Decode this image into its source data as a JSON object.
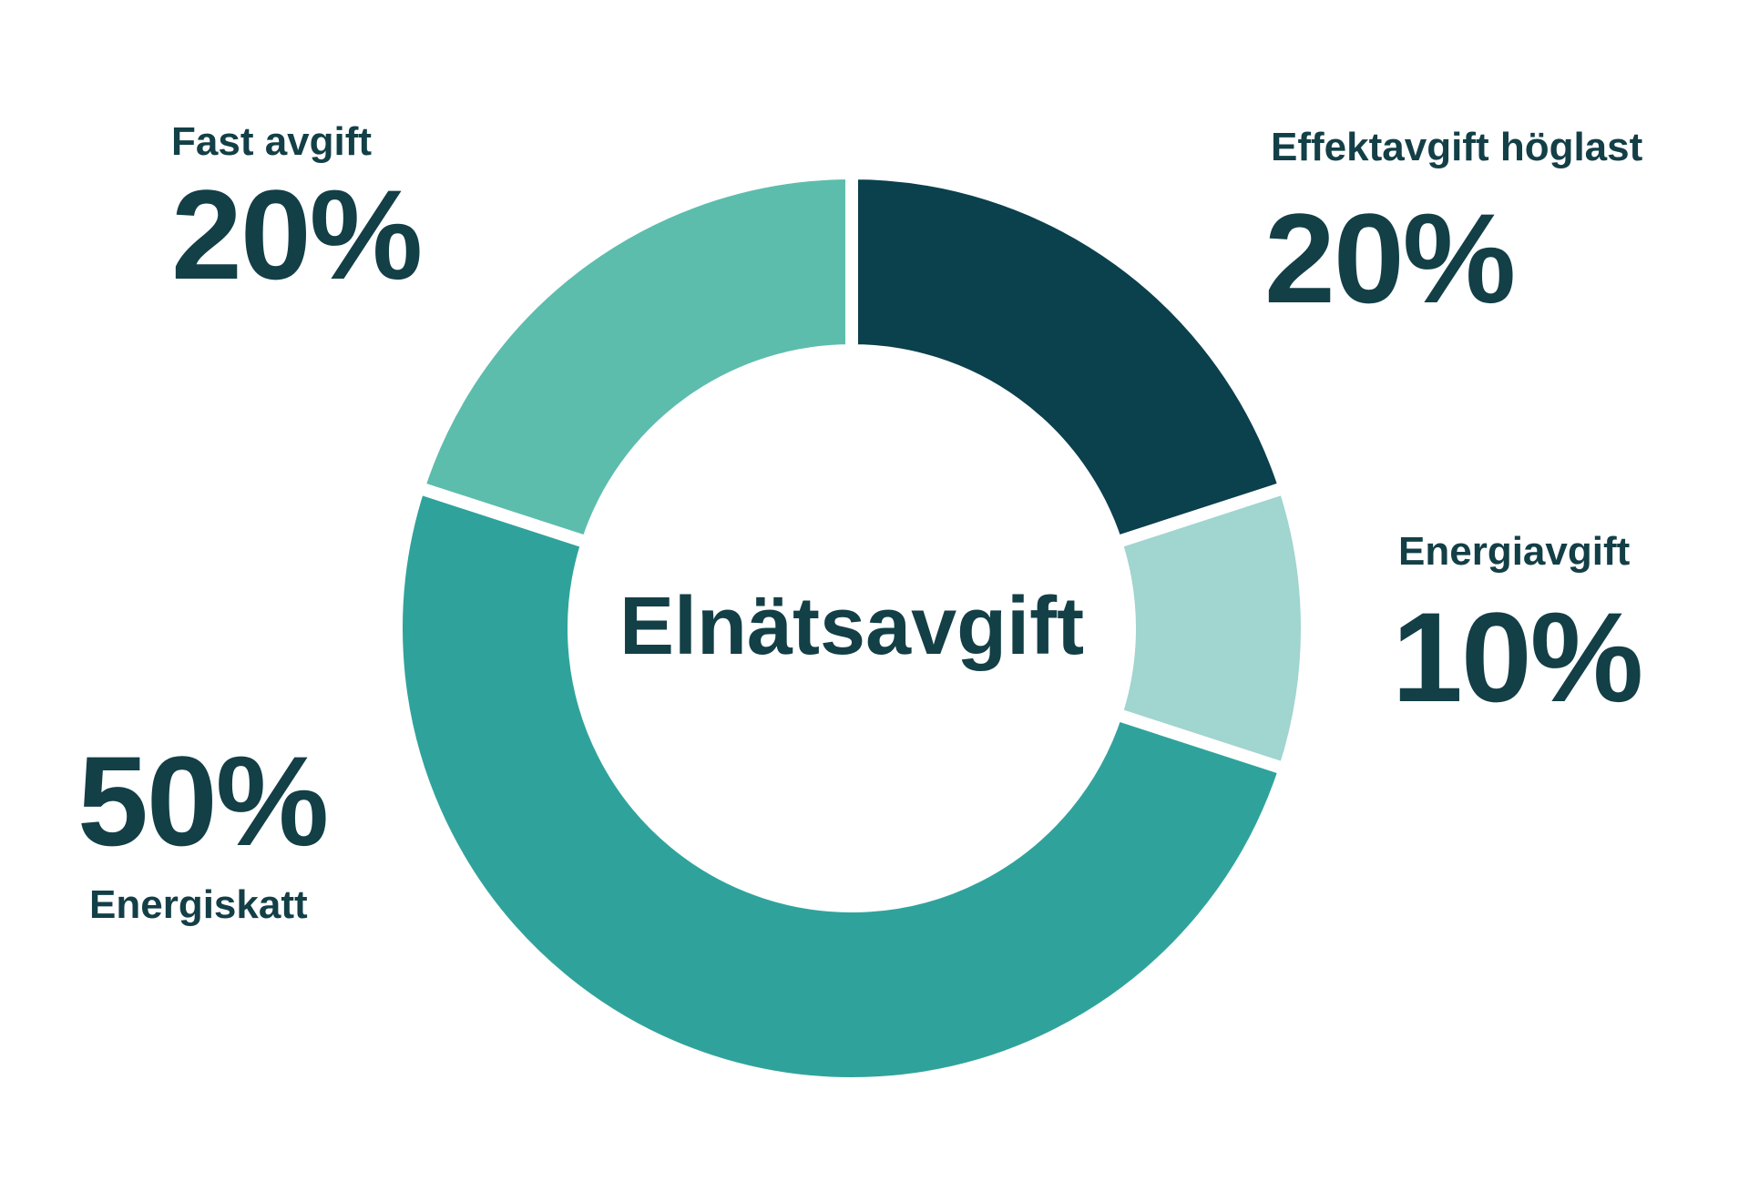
{
  "chart_data": {
    "type": "pie",
    "center_label": "Elnätsavgift",
    "slices": [
      {
        "name": "Effektavgift höglast",
        "value": 20,
        "value_label": "20%",
        "color": "#0b404d"
      },
      {
        "name": "Energiavgift",
        "value": 10,
        "value_label": "10%",
        "color": "#a1d5cf"
      },
      {
        "name": "Energiskatt",
        "value": 50,
        "value_label": "50%",
        "color": "#2fa39b"
      },
      {
        "name": "Fast avgift",
        "value": 20,
        "value_label": "20%",
        "color": "#5cbdac"
      }
    ],
    "text_color": "#133f47",
    "donut": true
  }
}
